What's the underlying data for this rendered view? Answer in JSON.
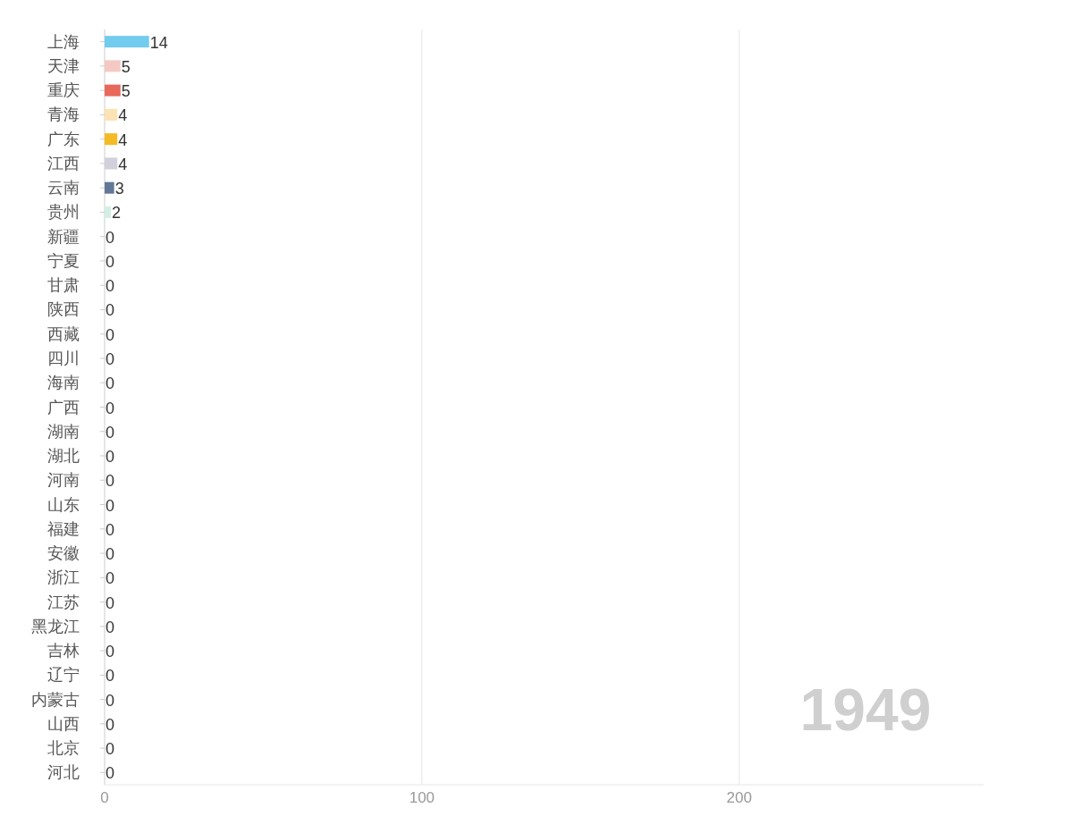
{
  "chart_data": {
    "type": "bar",
    "orientation": "horizontal",
    "categories": [
      "上海",
      "天津",
      "重庆",
      "青海",
      "广东",
      "江西",
      "云南",
      "贵州",
      "新疆",
      "宁夏",
      "甘肃",
      "陕西",
      "西藏",
      "四川",
      "海南",
      "广西",
      "湖南",
      "湖北",
      "河南",
      "山东",
      "福建",
      "安徽",
      "浙江",
      "江苏",
      "黑龙江",
      "吉林",
      "辽宁",
      "内蒙古",
      "山西",
      "北京",
      "河北"
    ],
    "values": [
      14,
      5,
      5,
      4,
      4,
      4,
      3,
      2,
      0,
      0,
      0,
      0,
      0,
      0,
      0,
      0,
      0,
      0,
      0,
      0,
      0,
      0,
      0,
      0,
      0,
      0,
      0,
      0,
      0,
      0,
      0
    ],
    "colors": [
      "#72ccee",
      "#f4c9c4",
      "#e8685a",
      "#fbe3b3",
      "#f5bb26",
      "#d1d1db",
      "#627897",
      "#d3efe3",
      "#cccccc",
      "#cccccc",
      "#cccccc",
      "#cccccc",
      "#cccccc",
      "#cccccc",
      "#cccccc",
      "#cccccc",
      "#cccccc",
      "#cccccc",
      "#cccccc",
      "#cccccc",
      "#cccccc",
      "#cccccc",
      "#cccccc",
      "#cccccc",
      "#cccccc",
      "#cccccc",
      "#cccccc",
      "#cccccc",
      "#cccccc",
      "#cccccc",
      "#cccccc"
    ],
    "xlim": [
      0,
      277
    ],
    "xticks": [
      0,
      100,
      200
    ],
    "grid": "x",
    "data_labels": true,
    "annotations": [
      "1949"
    ]
  }
}
